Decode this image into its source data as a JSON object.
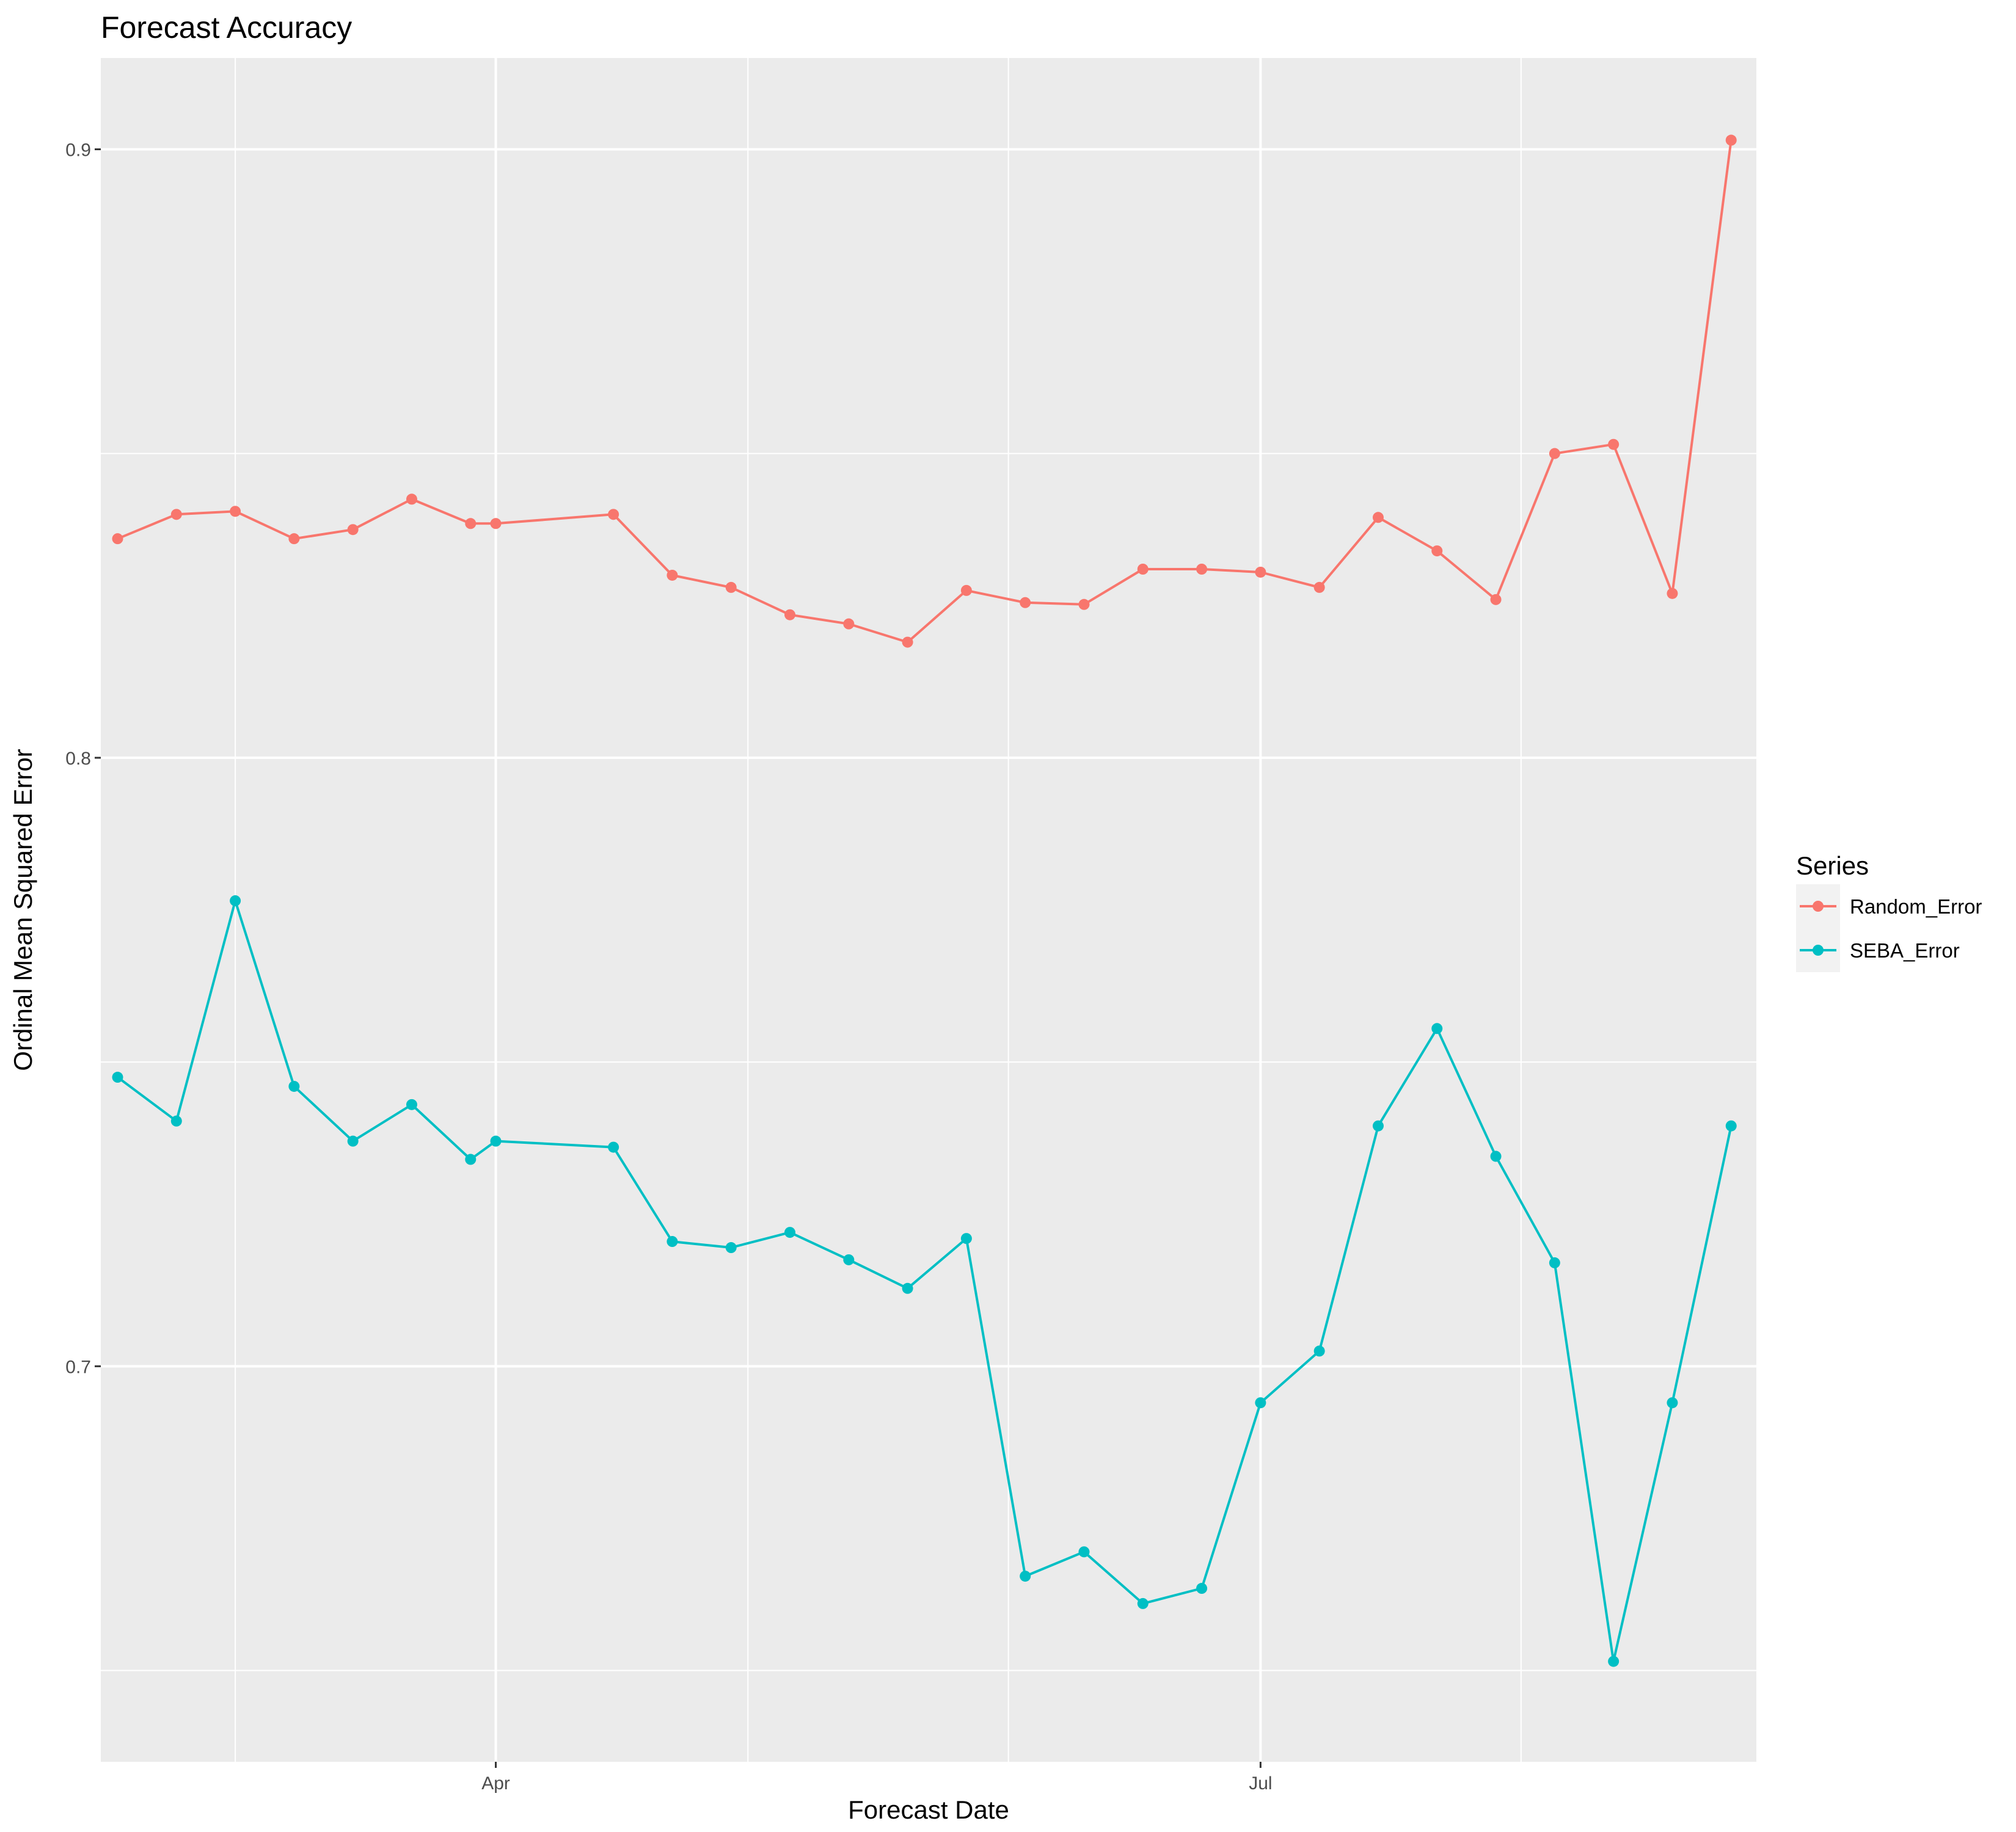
{
  "chart_data": {
    "type": "line",
    "title": "Forecast Accuracy",
    "xlabel": "Forecast Date",
    "ylabel": "Ordinal Mean Squared Error",
    "x_axis": {
      "type": "date",
      "range": [
        "2017-02-13",
        "2017-08-29"
      ],
      "ticks": [
        {
          "date": "2017-04-01",
          "label": "Apr"
        },
        {
          "date": "2017-07-01",
          "label": "Jul"
        }
      ],
      "minor_ticks": [
        "2017-03-01",
        "2017-05-01",
        "2017-06-01",
        "2017-08-01"
      ]
    },
    "y_axis": {
      "range": [
        0.635,
        0.915
      ],
      "ticks": [
        {
          "value": 0.7,
          "label": "0.7"
        },
        {
          "value": 0.8,
          "label": "0.8"
        },
        {
          "value": 0.9,
          "label": "0.9"
        }
      ],
      "minor_ticks": [
        0.65,
        0.75,
        0.85
      ]
    },
    "grid": true,
    "legend": {
      "title": "Series",
      "position": "right"
    },
    "x": [
      "2017-02-15",
      "2017-02-22",
      "2017-03-01",
      "2017-03-08",
      "2017-03-15",
      "2017-03-22",
      "2017-03-29",
      "2017-04-01",
      "2017-04-12",
      "2017-04-19",
      "2017-04-26",
      "2017-05-03",
      "2017-05-10",
      "2017-05-17",
      "2017-05-24",
      "2017-05-31",
      "2017-06-07",
      "2017-06-14",
      "2017-06-21",
      "2017-06-28",
      "2017-07-01",
      "2017-07-12",
      "2017-07-19",
      "2017-07-26",
      "2017-08-02",
      "2017-08-09",
      "2017-08-16",
      "2017-08-23",
      "2017-08-30"
    ],
    "series": [
      {
        "name": "Random_Error",
        "color": "#F8766D",
        "x": [
          "2017-02-15",
          "2017-02-22",
          "2017-03-01",
          "2017-03-08",
          "2017-03-15",
          "2017-03-22",
          "2017-03-29",
          "2017-04-01",
          "2017-04-15",
          "2017-04-22",
          "2017-04-29",
          "2017-05-06",
          "2017-05-13",
          "2017-05-20",
          "2017-05-27",
          "2017-06-03",
          "2017-06-10",
          "2017-06-17",
          "2017-06-24",
          "2017-07-01",
          "2017-07-08",
          "2017-07-15",
          "2017-07-22",
          "2017-07-29",
          "2017-08-05",
          "2017-08-12",
          "2017-08-19",
          "2017-08-26"
        ],
        "values": [
          0.836,
          0.84,
          0.8405,
          0.836,
          0.8375,
          0.8425,
          0.8385,
          0.8385,
          0.84,
          0.83,
          0.828,
          0.8235,
          0.822,
          0.819,
          0.8275,
          0.8255,
          0.8252,
          0.831,
          0.831,
          0.8305,
          0.828,
          0.8395,
          0.834,
          0.826,
          0.85,
          0.8515,
          0.827,
          0.9015
        ]
      },
      {
        "name": "SEBA_Error",
        "color": "#00BFC4",
        "x": [
          "2017-02-15",
          "2017-02-22",
          "2017-03-01",
          "2017-03-08",
          "2017-03-15",
          "2017-03-22",
          "2017-03-29",
          "2017-04-01",
          "2017-04-15",
          "2017-04-22",
          "2017-04-29",
          "2017-05-06",
          "2017-05-13",
          "2017-05-20",
          "2017-05-27",
          "2017-06-03",
          "2017-06-10",
          "2017-06-17",
          "2017-06-24",
          "2017-07-01",
          "2017-07-08",
          "2017-07-15",
          "2017-07-22",
          "2017-07-29",
          "2017-08-05",
          "2017-08-12",
          "2017-08-19",
          "2017-08-26"
        ],
        "values": [
          0.7475,
          0.7403,
          0.7765,
          0.746,
          0.737,
          0.743,
          0.734,
          0.737,
          0.736,
          0.7205,
          0.7195,
          0.722,
          0.7175,
          0.7128,
          0.721,
          0.6655,
          0.6695,
          0.661,
          0.6635,
          0.694,
          0.7025,
          0.7395,
          0.7555,
          0.7345,
          0.717,
          0.6515,
          0.694,
          0.7395
        ]
      }
    ]
  }
}
